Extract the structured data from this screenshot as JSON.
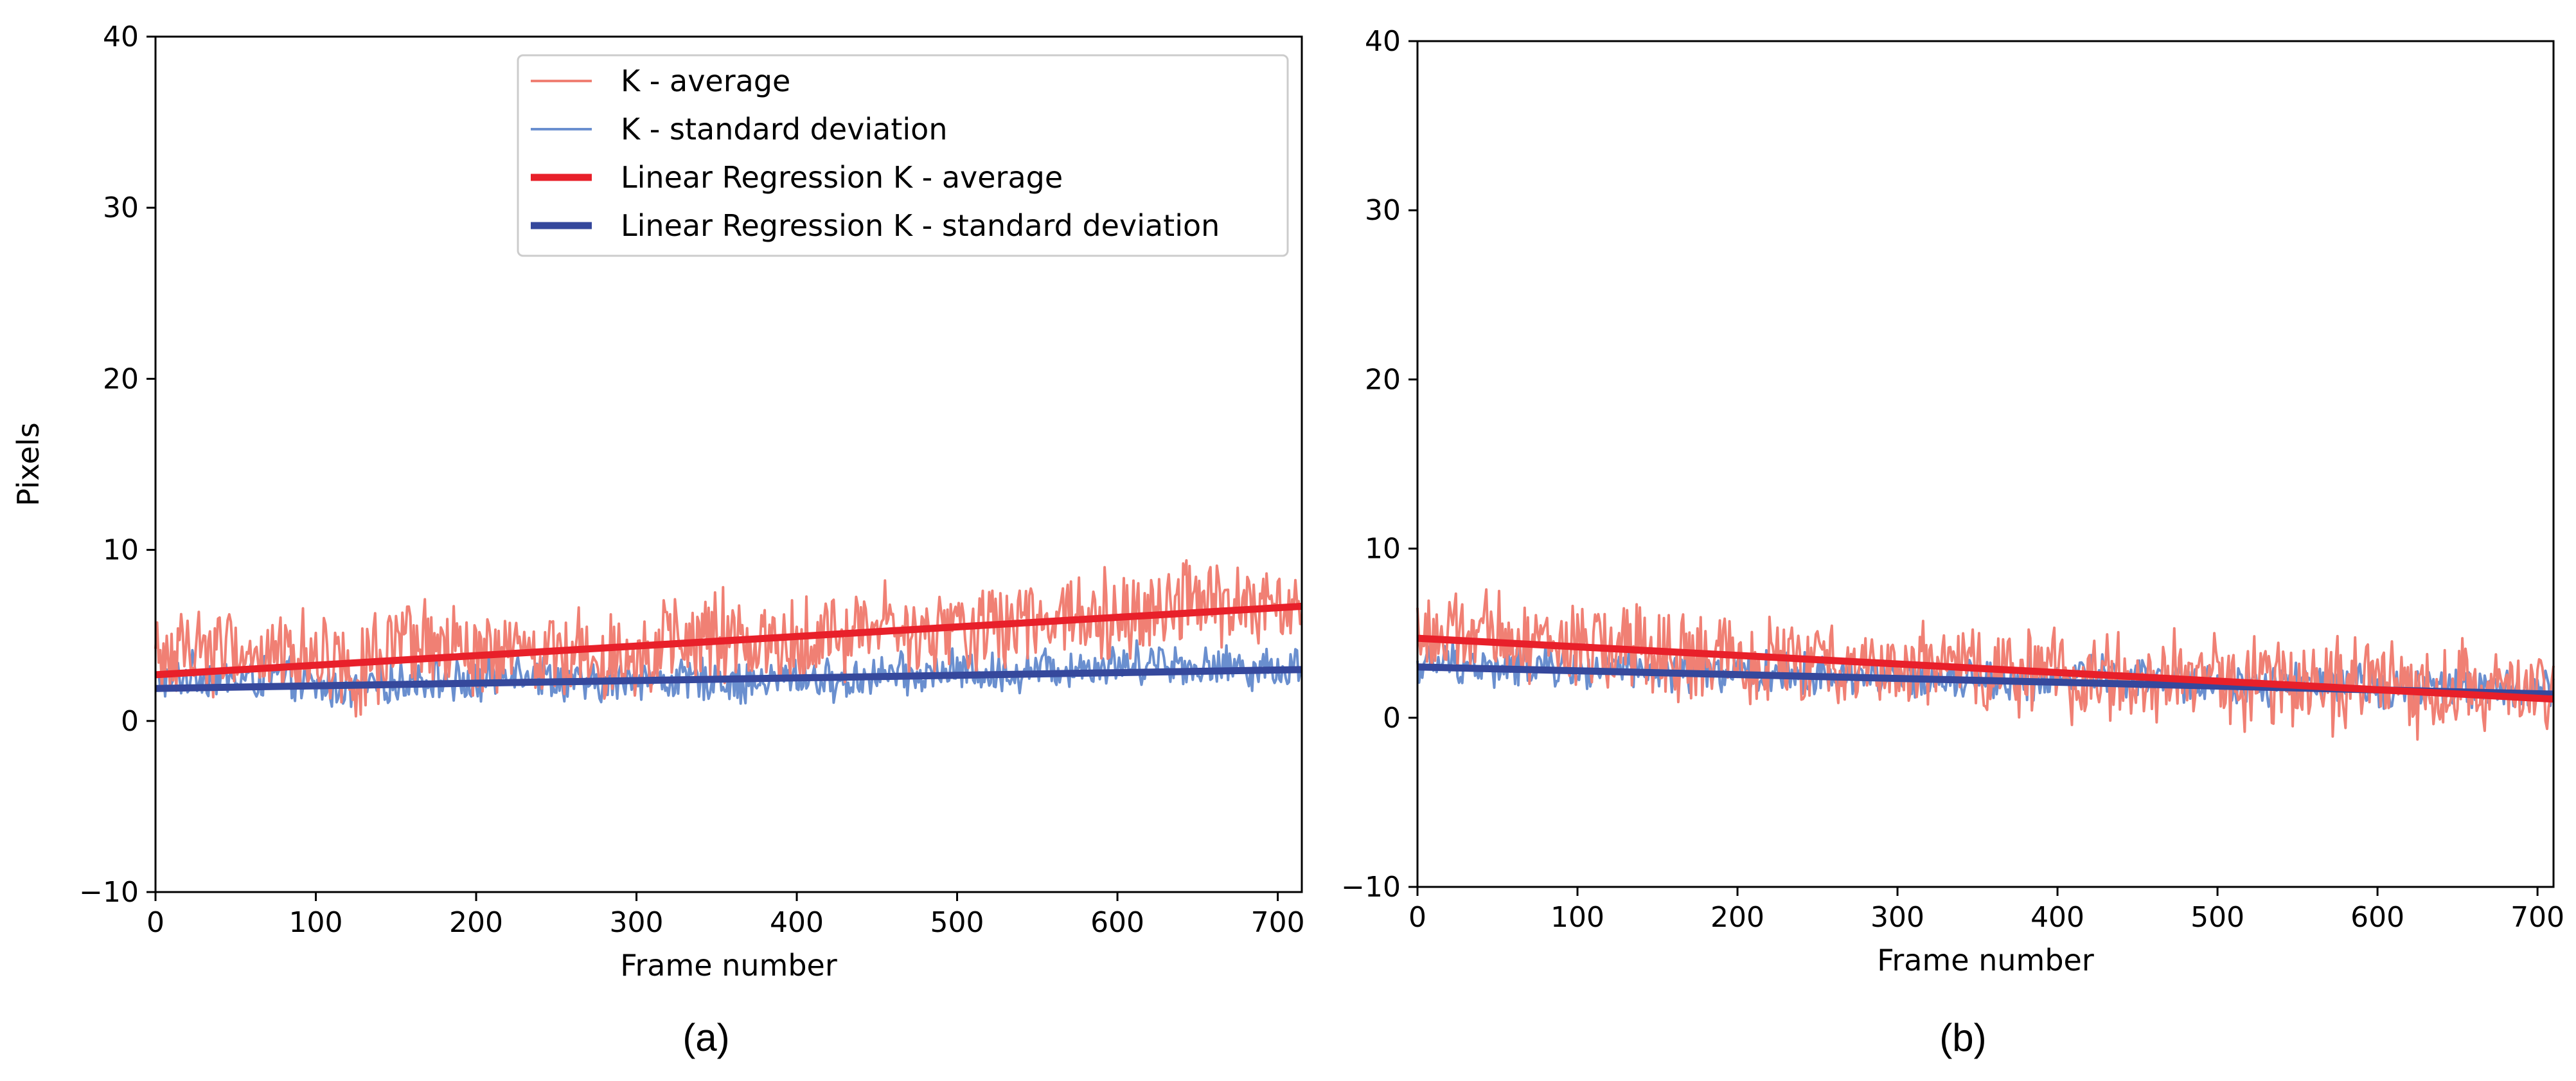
{
  "colors": {
    "avg_raw": "#f08074",
    "std_raw": "#6a8fcf",
    "avg_fit": "#e8202a",
    "std_fit": "#35489c",
    "axis": "#000000"
  },
  "chart_data": [
    {
      "type": "line",
      "panel_caption": "(a)",
      "xlabel": "Frame number",
      "ylabel": "Pixels",
      "xlim": [
        0,
        715
      ],
      "ylim": [
        -10,
        40
      ],
      "xticks": [
        0,
        100,
        200,
        300,
        400,
        500,
        600,
        700
      ],
      "yticks": [
        -10,
        0,
        10,
        20,
        30,
        40
      ],
      "ytick_labels": [
        "−10",
        "0",
        "10",
        "20",
        "30",
        "40"
      ],
      "grid": false,
      "legend_placement": "top-right",
      "legend": [
        {
          "label": "K - average",
          "series": "avg_raw"
        },
        {
          "label": "K - standard deviation",
          "series": "std_raw"
        },
        {
          "label": "Linear Regression K - average",
          "series": "avg_fit"
        },
        {
          "label": "Linear Regression K - standard deviation",
          "series": "std_fit"
        }
      ],
      "series": [
        {
          "name": "K - average",
          "key": "avg_raw",
          "x": [
            0,
            25,
            50,
            75,
            100,
            125,
            150,
            175,
            200,
            225,
            250,
            275,
            300,
            325,
            350,
            375,
            400,
            425,
            450,
            475,
            500,
            525,
            550,
            575,
            600,
            625,
            650,
            675,
            700,
            715
          ],
          "y": [
            3.5,
            4.5,
            4.0,
            3.8,
            4.2,
            3.0,
            3.9,
            4.4,
            3.6,
            3.8,
            4.1,
            4.0,
            4.2,
            4.3,
            4.8,
            4.5,
            4.6,
            5.0,
            5.6,
            4.8,
            5.3,
            5.4,
            6.2,
            6.6,
            6.3,
            6.8,
            7.2,
            6.6,
            6.3,
            6.7
          ]
        },
        {
          "name": "K - standard deviation",
          "key": "std_raw",
          "x": [
            0,
            25,
            50,
            75,
            100,
            125,
            150,
            175,
            200,
            225,
            250,
            275,
            300,
            325,
            350,
            375,
            400,
            425,
            450,
            475,
            500,
            525,
            550,
            575,
            600,
            625,
            650,
            675,
            700,
            715
          ],
          "y": [
            2.2,
            2.8,
            2.4,
            2.6,
            2.0,
            1.9,
            2.3,
            2.5,
            2.1,
            3.2,
            2.4,
            2.0,
            2.6,
            2.3,
            2.5,
            2.1,
            2.7,
            2.2,
            2.8,
            2.6,
            3.0,
            2.7,
            3.1,
            3.2,
            3.3,
            3.6,
            3.1,
            3.2,
            3.0,
            3.3
          ]
        },
        {
          "name": "Linear Regression K - average",
          "key": "avg_fit",
          "x": [
            0,
            715
          ],
          "y": [
            2.7,
            6.7
          ]
        },
        {
          "name": "Linear Regression K - standard deviation",
          "key": "std_fit",
          "x": [
            0,
            715
          ],
          "y": [
            1.9,
            3.0
          ]
        }
      ]
    },
    {
      "type": "line",
      "panel_caption": "(b)",
      "xlabel": "Frame number",
      "ylabel": "",
      "xlim": [
        0,
        710
      ],
      "ylim": [
        -10,
        40
      ],
      "xticks": [
        0,
        100,
        200,
        300,
        400,
        500,
        600,
        700
      ],
      "yticks": [
        -10,
        0,
        10,
        20,
        30,
        40
      ],
      "ytick_labels": [
        "−10",
        "0",
        "10",
        "20",
        "30",
        "40"
      ],
      "grid": false,
      "series": [
        {
          "name": "K - average",
          "key": "avg_raw",
          "x": [
            0,
            25,
            50,
            75,
            100,
            125,
            150,
            175,
            200,
            225,
            250,
            275,
            300,
            325,
            350,
            375,
            400,
            425,
            450,
            475,
            500,
            525,
            550,
            575,
            600,
            625,
            650,
            675,
            700,
            710
          ],
          "y": [
            5.0,
            4.6,
            4.8,
            4.5,
            4.0,
            4.2,
            3.9,
            3.5,
            3.3,
            3.6,
            3.0,
            3.4,
            2.8,
            3.0,
            2.6,
            2.9,
            2.5,
            2.7,
            2.2,
            2.6,
            2.3,
            2.0,
            2.4,
            1.8,
            2.1,
            1.6,
            2.0,
            1.5,
            1.3,
            1.4
          ]
        },
        {
          "name": "K - standard deviation",
          "key": "std_raw",
          "x": [
            0,
            25,
            50,
            75,
            100,
            125,
            150,
            175,
            200,
            225,
            250,
            275,
            300,
            325,
            350,
            375,
            400,
            425,
            450,
            475,
            500,
            525,
            550,
            575,
            600,
            625,
            650,
            675,
            700,
            710
          ],
          "y": [
            3.0,
            3.3,
            2.8,
            3.1,
            2.7,
            2.9,
            2.6,
            2.8,
            2.5,
            2.7,
            2.4,
            2.6,
            2.3,
            2.5,
            2.4,
            2.2,
            2.3,
            2.6,
            2.2,
            2.0,
            2.1,
            1.9,
            2.0,
            1.8,
            1.9,
            1.7,
            1.8,
            1.6,
            1.7,
            1.6
          ]
        },
        {
          "name": "Linear Regression K - average",
          "key": "avg_fit",
          "x": [
            0,
            710
          ],
          "y": [
            4.7,
            1.1
          ]
        },
        {
          "name": "Linear Regression K - standard deviation",
          "key": "std_fit",
          "x": [
            0,
            710
          ],
          "y": [
            3.0,
            1.4
          ]
        }
      ]
    }
  ]
}
